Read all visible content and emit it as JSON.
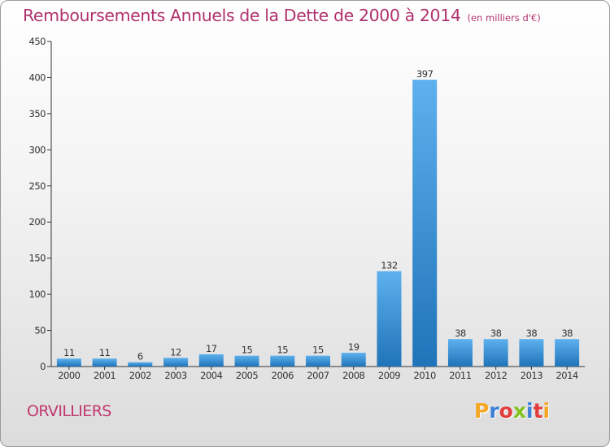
{
  "title": "Remboursements Annuels de la Dette de 2000 à 2014",
  "unit": "(en milliers d'€)",
  "commune": "ORVILLIERS",
  "logo": {
    "text": "Proxiti",
    "colors": [
      "#f5a623",
      "#3b7fd6",
      "#e23b3b",
      "#7fc31c",
      "#3b7fd6",
      "#e23b3b",
      "#f5a623"
    ]
  },
  "colors": {
    "title": "#b0326e",
    "bar_light": "#5eb1ee",
    "bar_dark": "#1f73b8"
  },
  "chart_data": {
    "type": "bar",
    "categories": [
      "2000",
      "2001",
      "2002",
      "2003",
      "2004",
      "2005",
      "2006",
      "2007",
      "2008",
      "2009",
      "2010",
      "2011",
      "2012",
      "2013",
      "2014"
    ],
    "values": [
      11,
      11,
      6,
      12,
      17,
      15,
      15,
      15,
      19,
      132,
      397,
      38,
      38,
      38,
      38
    ],
    "ylim": [
      0,
      450
    ],
    "yticks": [
      0,
      50,
      100,
      150,
      200,
      250,
      300,
      350,
      400,
      450
    ],
    "grid": false,
    "xlabel": "",
    "ylabel": ""
  }
}
